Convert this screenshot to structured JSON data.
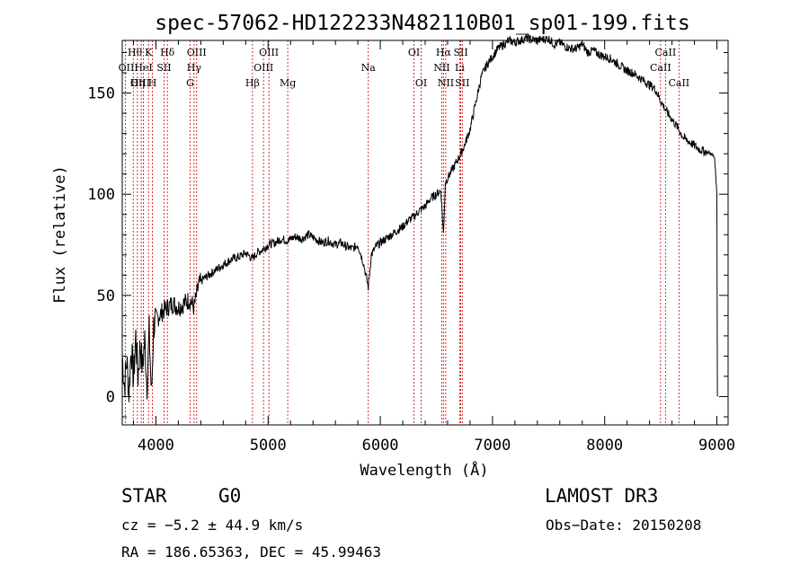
{
  "chart_data": {
    "type": "line",
    "title": "spec-57062-HD122233N482110B01_sp01-199.fits",
    "xlabel": "Wavelength (Å)",
    "ylabel": "Flux (relative)",
    "xlim": [
      3700,
      9100
    ],
    "ylim": [
      -14,
      176
    ],
    "xticks": [
      4000,
      5000,
      6000,
      7000,
      8000,
      9000
    ],
    "xtick_labels": [
      "4000",
      "5000",
      "6000",
      "7000",
      "8000",
      "9000"
    ],
    "yticks": [
      0,
      50,
      100,
      150
    ],
    "ytick_labels": [
      "0",
      "50",
      "100",
      "150"
    ],
    "series": [
      {
        "name": "flux",
        "x": [
          3700,
          3720,
          3740,
          3760,
          3780,
          3800,
          3820,
          3840,
          3860,
          3880,
          3900,
          3920,
          3940,
          3960,
          3980,
          4000,
          4030,
          4060,
          4100,
          4150,
          4200,
          4250,
          4300,
          4340,
          4380,
          4420,
          4470,
          4520,
          4570,
          4620,
          4680,
          4740,
          4800,
          4861,
          4900,
          4960,
          5000,
          5060,
          5120,
          5170,
          5240,
          5300,
          5360,
          5420,
          5480,
          5540,
          5600,
          5650,
          5700,
          5750,
          5800,
          5850,
          5893,
          5920,
          5960,
          6000,
          6050,
          6100,
          6150,
          6200,
          6250,
          6300,
          6350,
          6400,
          6450,
          6500,
          6540,
          6563,
          6580,
          6620,
          6660,
          6700,
          6750,
          6800,
          6850,
          6900,
          6950,
          7000,
          7050,
          7100,
          7150,
          7200,
          7300,
          7400,
          7500,
          7550,
          7600,
          7650,
          7700,
          7750,
          7800,
          7850,
          7900,
          7950,
          8000,
          8050,
          8100,
          8150,
          8200,
          8250,
          8300,
          8350,
          8400,
          8450,
          8500,
          8550,
          8600,
          8650,
          8700,
          8750,
          8800,
          8850,
          8900,
          8950,
          8980,
          9000,
          9005
        ],
        "y": [
          20,
          5,
          18,
          2,
          25,
          8,
          30,
          10,
          26,
          14,
          28,
          6,
          32,
          0,
          35,
          38,
          40,
          42,
          44,
          46,
          44,
          46,
          48,
          44,
          55,
          58,
          60,
          62,
          64,
          66,
          68,
          69,
          71,
          68,
          71,
          73,
          75,
          76,
          78,
          77,
          79,
          78,
          80,
          78,
          76,
          77,
          75,
          76,
          74,
          73,
          75,
          66,
          54,
          70,
          74,
          76,
          78,
          80,
          82,
          84,
          87,
          89,
          92,
          94,
          98,
          100,
          102,
          80,
          106,
          110,
          114,
          118,
          124,
          132,
          145,
          158,
          164,
          168,
          172,
          174,
          176,
          175,
          177,
          176,
          177,
          174,
          175,
          173,
          172,
          172,
          174,
          170,
          171,
          169,
          168,
          167,
          165,
          163,
          161,
          160,
          158,
          156,
          154,
          152,
          146,
          141,
          137,
          133,
          128,
          126,
          124,
          122,
          121,
          120,
          118,
          100,
          0
        ]
      }
    ],
    "lines": [
      {
        "label": "Hθ",
        "x": 3798,
        "row": 1,
        "align": "right"
      },
      {
        "label": "OII",
        "x": 3727,
        "row": 2,
        "align": "right"
      },
      {
        "label": "OIII",
        "x": 3869,
        "row": 3,
        "align": "right"
      },
      {
        "label": "HeI",
        "x": 3889,
        "row": 2,
        "align": "mid"
      },
      {
        "label": "Hη",
        "x": 3835,
        "row": 3,
        "align": "mid"
      },
      {
        "label": "K",
        "x": 3934,
        "row": 1,
        "align": "mid"
      },
      {
        "label": "H",
        "x": 3969,
        "row": 3,
        "align": "mid"
      },
      {
        "label": "SII",
        "x": 4072,
        "row": 2,
        "align": "mid"
      },
      {
        "label": "Hδ",
        "x": 4102,
        "row": 1,
        "align": "mid"
      },
      {
        "label": "OIII",
        "x": 4363,
        "row": 1,
        "align": "mid"
      },
      {
        "label": "Hγ",
        "x": 4340,
        "row": 2,
        "align": "mid"
      },
      {
        "label": "G",
        "x": 4305,
        "row": 3,
        "align": "mid"
      },
      {
        "label": "Hβ",
        "x": 4861,
        "row": 3,
        "align": "mid"
      },
      {
        "label": "OIII",
        "x": 5007,
        "row": 1,
        "align": "mid"
      },
      {
        "label": "OIII",
        "x": 4959,
        "row": 2,
        "align": "mid"
      },
      {
        "label": "Mg",
        "x": 5175,
        "row": 3,
        "align": "mid"
      },
      {
        "label": "Na",
        "x": 5893,
        "row": 2,
        "align": "mid"
      },
      {
        "label": "OI",
        "x": 6300,
        "row": 1,
        "align": "mid"
      },
      {
        "label": "OI",
        "x": 6364,
        "row": 3,
        "align": "mid"
      },
      {
        "label": "Hα",
        "x": 6563,
        "row": 1,
        "align": "mid"
      },
      {
        "label": "NII",
        "x": 6548,
        "row": 2,
        "align": "mid"
      },
      {
        "label": "NII",
        "x": 6584,
        "row": 3,
        "align": "mid"
      },
      {
        "label": "SII",
        "x": 6717,
        "row": 1,
        "align": "mid"
      },
      {
        "label": "Li",
        "x": 6708,
        "row": 2,
        "align": "mid"
      },
      {
        "label": "SII",
        "x": 6731,
        "row": 3,
        "align": "mid"
      },
      {
        "label": "CaII",
        "x": 8542,
        "row": 1,
        "align": "mid"
      },
      {
        "label": "CaII",
        "x": 8498,
        "row": 2,
        "align": "mid"
      },
      {
        "label": "CaII",
        "x": 8662,
        "row": 3,
        "align": "mid"
      }
    ]
  },
  "info": {
    "class": "STAR",
    "subclass": "G0",
    "survey": "LAMOST DR3",
    "cz": "cz = −5.2 ± 44.9 km/s",
    "obs_date": "Obs−Date: 20150208",
    "coords": "RA = 186.65363, DEC =  45.99463"
  },
  "colors": {
    "line_marker": "#cc0000",
    "spectrum": "#000000"
  }
}
